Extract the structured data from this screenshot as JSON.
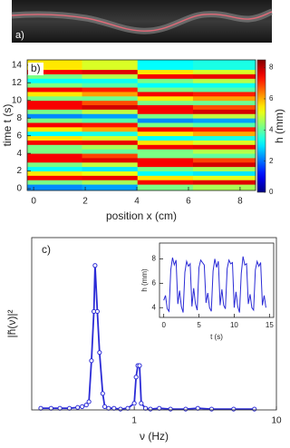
{
  "photo": {
    "label": "a)"
  },
  "chart_data": [
    {
      "type": "heatmap",
      "label": "b)",
      "xlabel": "position x (cm)",
      "ylabel": "time t (s)",
      "colorbar_label": "h (mm)",
      "colormap": "jet",
      "x": [
        0.8,
        2.95,
        5.1,
        7.25
      ],
      "y": [
        0.25,
        0.75,
        1.25,
        1.75,
        2.25,
        2.75,
        3.25,
        3.75,
        4.25,
        4.75,
        5.25,
        5.75,
        6.25,
        6.75,
        7.25,
        7.75,
        8.25,
        8.75,
        9.25,
        9.75,
        10.25,
        10.75,
        11.25,
        11.75,
        12.25,
        12.75,
        13.25,
        13.75
      ],
      "z": [
        [
          2.2,
          4.2,
          7.5,
          5.5,
          3.2,
          4.2,
          7.5,
          7.5,
          4.2,
          4.2,
          7.5,
          5.5,
          3.2,
          5.5,
          7.5,
          4.2,
          2.2,
          4.2,
          7.5,
          7.5,
          4.2,
          5.5,
          7.5,
          4.2,
          3.2,
          4.2,
          7.5,
          5.5
        ],
        [
          2.4,
          4.6,
          7.6,
          5.2,
          3.0,
          4.8,
          7.7,
          6.9,
          4.0,
          4.6,
          7.6,
          5.0,
          3.4,
          6.0,
          7.3,
          3.9,
          2.4,
          4.8,
          7.8,
          6.8,
          4.1,
          6.1,
          7.2,
          3.9,
          3.3,
          4.7,
          7.7,
          5.0
        ],
        [
          4.2,
          7.5,
          5.5,
          3.2,
          4.2,
          7.5,
          7.5,
          4.2,
          4.2,
          7.5,
          5.5,
          3.2,
          5.5,
          7.5,
          4.2,
          2.2,
          4.2,
          7.5,
          7.5,
          4.2,
          5.5,
          7.5,
          4.2,
          3.2,
          4.2,
          7.5,
          5.5,
          3.2
        ],
        [
          4.6,
          7.7,
          5.1,
          3.0,
          4.6,
          7.8,
          6.9,
          4.0,
          4.7,
          7.6,
          5.0,
          3.4,
          6.0,
          7.2,
          3.9,
          2.4,
          4.8,
          7.8,
          6.8,
          4.1,
          6.1,
          7.2,
          3.9,
          3.3,
          4.7,
          7.6,
          5.0,
          3.4
        ]
      ],
      "xlim": [
        -0.25,
        8.6
      ],
      "ylim": [
        -0.2,
        14.6
      ],
      "xticks": [
        0,
        2,
        4,
        6,
        8
      ],
      "yticks": [
        0,
        2,
        4,
        6,
        8,
        10,
        12,
        14
      ],
      "clim": [
        0,
        8.5
      ],
      "cticks": [
        0,
        2,
        4,
        6,
        8
      ]
    },
    {
      "type": "line",
      "label": "c)",
      "xlabel": "ν (Hz)",
      "ylabel": "|h̃(ν)|²",
      "xscale": "log",
      "markers": true,
      "color": "#2b2bd6",
      "xlim": [
        0.19,
        10
      ],
      "ylim": [
        0,
        1.05
      ],
      "xticks": [
        1,
        10
      ],
      "x": [
        0.22,
        0.26,
        0.3,
        0.35,
        0.4,
        0.43,
        0.46,
        0.48,
        0.5,
        0.52,
        0.53,
        0.55,
        0.57,
        0.6,
        0.62,
        0.66,
        0.72,
        0.8,
        0.9,
        1.0,
        1.03,
        1.06,
        1.09,
        1.12,
        1.2,
        1.3,
        1.5,
        1.8,
        2.3,
        2.8,
        3.5,
        5,
        7
      ],
      "values": [
        0.01,
        0.01,
        0.01,
        0.01,
        0.015,
        0.02,
        0.03,
        0.05,
        0.3,
        0.6,
        0.88,
        0.6,
        0.35,
        0.1,
        0.02,
        0.01,
        0.01,
        0.005,
        0.01,
        0.04,
        0.2,
        0.27,
        0.27,
        0.04,
        0.01,
        0.005,
        0.01,
        0.005,
        0.005,
        0.01,
        0.005,
        0.005,
        0.005
      ]
    },
    {
      "type": "line",
      "xlabel": "t (s)",
      "ylabel": "h (mm)",
      "markers": false,
      "color": "#2b2bd6",
      "xlim": [
        -0.6,
        15.6
      ],
      "ylim": [
        3.2,
        9.3
      ],
      "xticks": [
        0,
        5,
        10,
        15
      ],
      "yticks": [
        4,
        6,
        8
      ],
      "x": [
        0,
        0.25,
        0.5,
        0.75,
        1,
        1.25,
        1.5,
        1.75,
        2,
        2.25,
        2.5,
        2.75,
        3,
        3.25,
        3.5,
        3.75,
        4,
        4.25,
        4.5,
        4.75,
        5,
        5.25,
        5.5,
        5.75,
        6,
        6.25,
        6.5,
        6.75,
        7,
        7.25,
        7.5,
        7.75,
        8,
        8.25,
        8.5,
        8.75,
        9,
        9.25,
        9.5,
        9.75,
        10,
        10.25,
        10.5,
        10.75,
        11,
        11.25,
        11.5,
        11.75,
        12,
        12.25,
        12.5,
        12.75,
        13,
        13.25,
        13.5,
        13.75,
        14,
        14.25,
        14.5
      ],
      "values": [
        4.6,
        5.0,
        3.9,
        3.7,
        7.1,
        8.1,
        7.5,
        7.9,
        4.3,
        5.4,
        4.1,
        3.6,
        6.9,
        7.8,
        7.4,
        7.6,
        4.1,
        5.6,
        4.3,
        3.8,
        7.3,
        7.9,
        7.7,
        7.5,
        4.4,
        5.2,
        4.0,
        3.7,
        7.0,
        8.0,
        7.3,
        7.8,
        4.2,
        5.5,
        4.2,
        3.9,
        7.2,
        7.9,
        7.6,
        7.7,
        4.0,
        5.3,
        4.1,
        3.6,
        6.8,
        8.2,
        7.5,
        7.6,
        4.3,
        5.1,
        4.0,
        3.8,
        7.1,
        7.8,
        7.4,
        7.7,
        4.2,
        5.0,
        4.0
      ]
    }
  ]
}
